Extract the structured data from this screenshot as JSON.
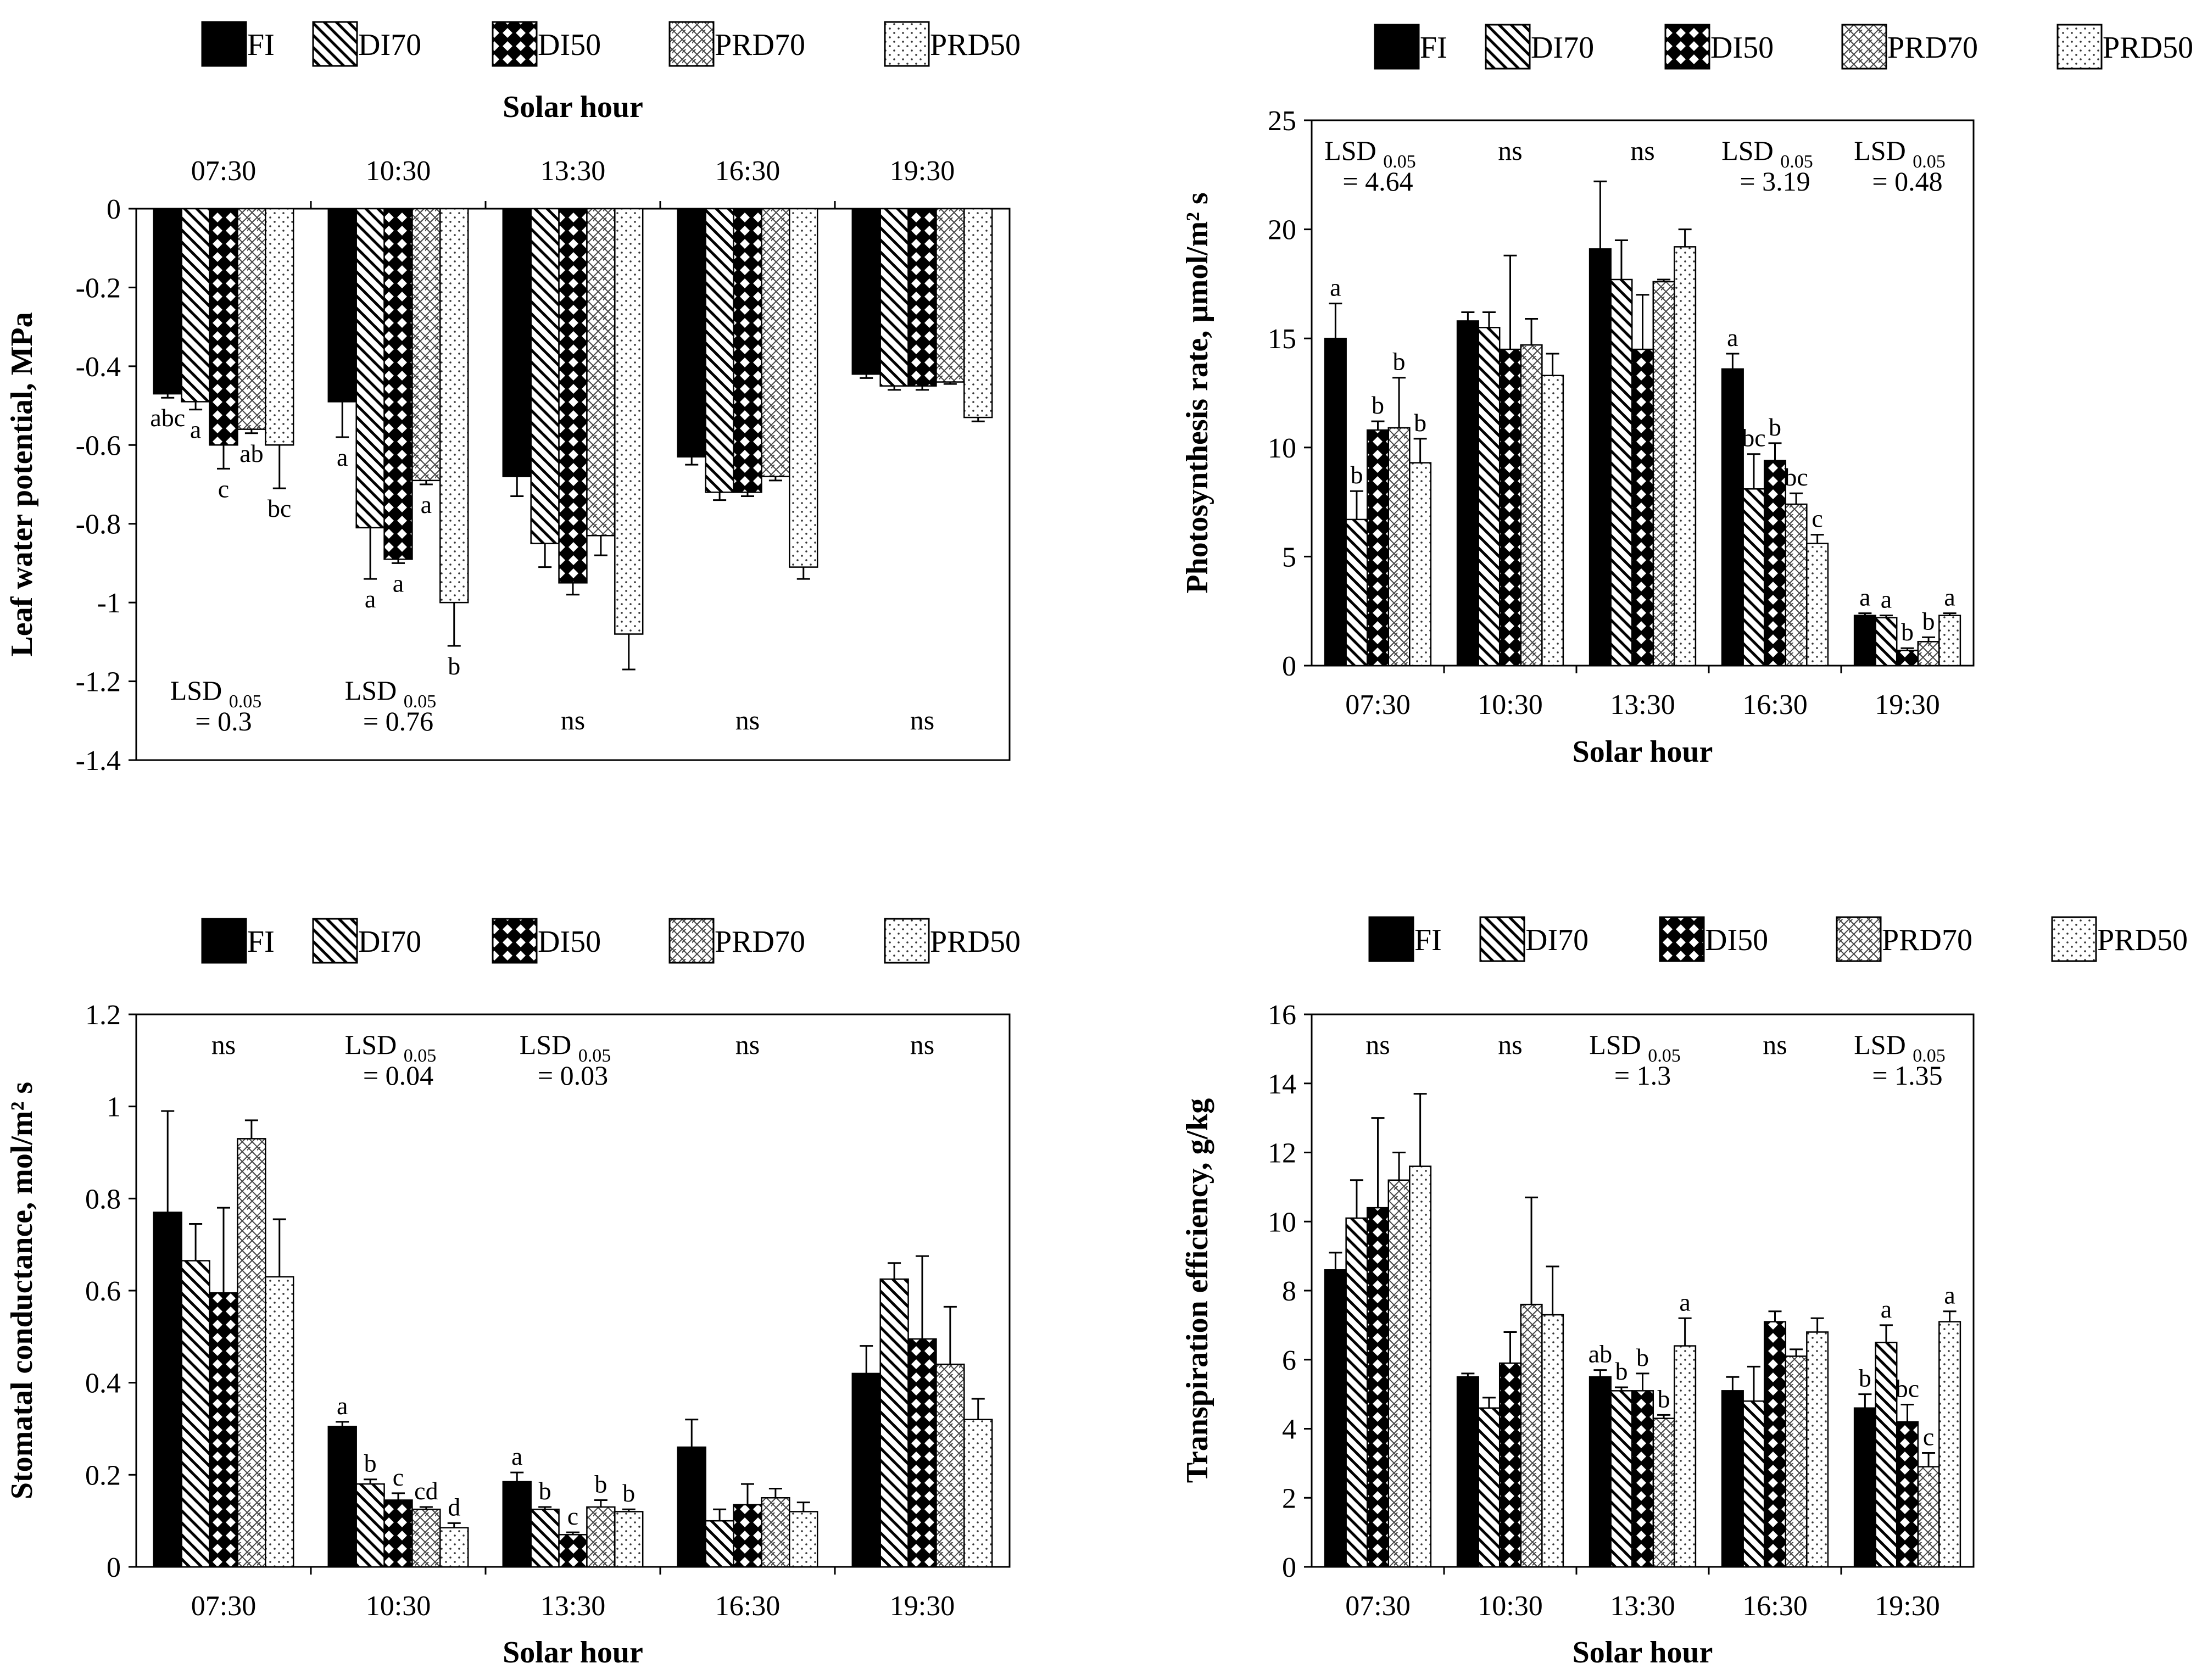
{
  "legend_labels": [
    "FI",
    "DI70",
    "DI50",
    "PRD70",
    "PRD50"
  ],
  "chart_data": [
    {
      "type": "bar",
      "title": "",
      "xlabel": "Solar hour",
      "ylabel": "Leaf water potential, MPa",
      "ylim": [
        -1.4,
        0
      ],
      "ytick_labels": [
        "0",
        "-0.2",
        "-0.4",
        "-0.6",
        "-0.8",
        "-1",
        "-1.2",
        "-1.4"
      ],
      "categories": [
        "07:30",
        "10:30",
        "13:30",
        "16:30",
        "19:30"
      ],
      "series": [
        {
          "name": "FI",
          "values": [
            -0.47,
            -0.49,
            -0.68,
            -0.63,
            -0.42
          ],
          "errors": [
            0.01,
            0.09,
            0.05,
            0.02,
            0.01
          ],
          "letters": [
            "abc",
            "a",
            "",
            "",
            ""
          ]
        },
        {
          "name": "DI70",
          "values": [
            -0.49,
            -0.81,
            -0.85,
            -0.72,
            -0.45
          ],
          "errors": [
            0.02,
            0.13,
            0.06,
            0.02,
            0.01
          ],
          "letters": [
            "a",
            "a",
            "",
            "",
            ""
          ]
        },
        {
          "name": "DI50",
          "values": [
            -0.6,
            -0.89,
            -0.95,
            -0.72,
            -0.45
          ],
          "errors": [
            0.06,
            0.01,
            0.03,
            0.01,
            0.01
          ],
          "letters": [
            "c",
            "a",
            "",
            "",
            ""
          ]
        },
        {
          "name": "PRD70",
          "values": [
            -0.56,
            -0.69,
            -0.83,
            -0.68,
            -0.44
          ],
          "errors": [
            0.01,
            0.01,
            0.05,
            0.01,
            0.005
          ],
          "letters": [
            "ab",
            "a",
            "",
            "",
            ""
          ]
        },
        {
          "name": "PRD50",
          "values": [
            -0.6,
            -1.0,
            -1.08,
            -0.91,
            -0.53
          ],
          "errors": [
            0.11,
            0.11,
            0.09,
            0.03,
            0.01
          ],
          "letters": [
            "bc",
            "b",
            "",
            "",
            ""
          ]
        }
      ],
      "annotations": [
        {
          "line1": "LSD",
          "sub": "0.05",
          "line2": "= 0.3"
        },
        {
          "line1": "LSD",
          "sub": "0.05",
          "line2": "= 0.76"
        },
        {
          "line1": "ns",
          "sub": "",
          "line2": ""
        },
        {
          "line1": "ns",
          "sub": "",
          "line2": ""
        },
        {
          "line1": "ns",
          "sub": "",
          "line2": ""
        }
      ]
    },
    {
      "type": "bar",
      "title": "",
      "xlabel": "Solar hour",
      "ylabel": "Photosynthesis rate, µmol/m² s",
      "ylim": [
        0,
        25
      ],
      "ytick_labels": [
        "0",
        "5",
        "10",
        "15",
        "20",
        "25"
      ],
      "categories": [
        "07:30",
        "10:30",
        "13:30",
        "16:30",
        "19:30"
      ],
      "series": [
        {
          "name": "FI",
          "values": [
            15.0,
            15.8,
            19.1,
            13.6,
            2.3
          ],
          "errors": [
            1.6,
            0.4,
            3.1,
            0.7,
            0.1
          ],
          "letters": [
            "a",
            "",
            "",
            "a",
            "a"
          ]
        },
        {
          "name": "DI70",
          "values": [
            6.7,
            15.5,
            17.7,
            8.1,
            2.2
          ],
          "errors": [
            1.3,
            0.7,
            1.8,
            1.6,
            0.1
          ],
          "letters": [
            "b",
            "",
            "",
            "bc",
            "a"
          ]
        },
        {
          "name": "DI50",
          "values": [
            10.8,
            14.5,
            14.5,
            9.4,
            0.7
          ],
          "errors": [
            0.4,
            4.3,
            2.5,
            0.8,
            0.1
          ],
          "letters": [
            "b",
            "",
            "",
            "b",
            "b"
          ]
        },
        {
          "name": "PRD70",
          "values": [
            10.9,
            14.7,
            17.6,
            7.4,
            1.1
          ],
          "errors": [
            2.3,
            1.2,
            0.1,
            0.5,
            0.2
          ],
          "letters": [
            "b",
            "",
            "",
            "bc",
            "b"
          ]
        },
        {
          "name": "PRD50",
          "values": [
            9.3,
            13.3,
            19.2,
            5.6,
            2.3
          ],
          "errors": [
            1.1,
            1.0,
            0.8,
            0.4,
            0.1
          ],
          "letters": [
            "b",
            "",
            "",
            "c",
            "a"
          ]
        }
      ],
      "annotations": [
        {
          "line1": "LSD",
          "sub": "0.05",
          "line2": "= 4.64"
        },
        {
          "line1": "ns",
          "sub": "",
          "line2": ""
        },
        {
          "line1": "ns",
          "sub": "",
          "line2": ""
        },
        {
          "line1": "LSD",
          "sub": "0.05",
          "line2": "= 3.19"
        },
        {
          "line1": "LSD",
          "sub": "0.05",
          "line2": "= 0.48"
        }
      ]
    },
    {
      "type": "bar",
      "title": "",
      "xlabel": "Solar hour",
      "ylabel": "Stomatal conductance, mol/m² s",
      "ylim": [
        0,
        1.2
      ],
      "ytick_labels": [
        "0",
        "0.2",
        "0.4",
        "0.6",
        "0.8",
        "1",
        "1.2"
      ],
      "categories": [
        "07:30",
        "10:30",
        "13:30",
        "16:30",
        "19:30"
      ],
      "series": [
        {
          "name": "FI",
          "values": [
            0.77,
            0.305,
            0.185,
            0.26,
            0.42
          ],
          "errors": [
            0.22,
            0.01,
            0.02,
            0.06,
            0.06
          ],
          "letters": [
            "",
            "a",
            "a",
            "",
            ""
          ]
        },
        {
          "name": "DI70",
          "values": [
            0.665,
            0.18,
            0.125,
            0.1,
            0.625
          ],
          "errors": [
            0.08,
            0.01,
            0.005,
            0.025,
            0.035
          ],
          "letters": [
            "",
            "b",
            "b",
            "",
            ""
          ]
        },
        {
          "name": "DI50",
          "values": [
            0.595,
            0.145,
            0.07,
            0.135,
            0.495
          ],
          "errors": [
            0.185,
            0.015,
            0.005,
            0.045,
            0.18
          ],
          "letters": [
            "",
            "c",
            "c",
            "",
            ""
          ]
        },
        {
          "name": "PRD70",
          "values": [
            0.93,
            0.125,
            0.13,
            0.15,
            0.44
          ],
          "errors": [
            0.04,
            0.005,
            0.015,
            0.02,
            0.125
          ],
          "letters": [
            "",
            "cd",
            "b",
            "",
            ""
          ]
        },
        {
          "name": "PRD50",
          "values": [
            0.63,
            0.085,
            0.12,
            0.12,
            0.32
          ],
          "errors": [
            0.125,
            0.01,
            0.005,
            0.02,
            0.045
          ],
          "letters": [
            "",
            "d",
            "b",
            "",
            ""
          ]
        }
      ],
      "annotations": [
        {
          "line1": "ns",
          "sub": "",
          "line2": ""
        },
        {
          "line1": "LSD",
          "sub": "0.05",
          "line2": "= 0.04"
        },
        {
          "line1": "LSD",
          "sub": "0.05",
          "line2": "= 0.03"
        },
        {
          "line1": "ns",
          "sub": "",
          "line2": ""
        },
        {
          "line1": "ns",
          "sub": "",
          "line2": ""
        }
      ]
    },
    {
      "type": "bar",
      "title": "",
      "xlabel": "Solar hour",
      "ylabel": "Transpiration efficiency, g/kg",
      "ylim": [
        0,
        16
      ],
      "ytick_labels": [
        "0",
        "2",
        "4",
        "6",
        "8",
        "10",
        "12",
        "14",
        "16"
      ],
      "categories": [
        "07:30",
        "10:30",
        "13:30",
        "16:30",
        "19:30"
      ],
      "series": [
        {
          "name": "FI",
          "values": [
            8.6,
            5.5,
            5.5,
            5.1,
            4.6
          ],
          "errors": [
            0.5,
            0.1,
            0.2,
            0.4,
            0.4
          ],
          "letters": [
            "",
            "",
            "ab",
            "",
            "b"
          ]
        },
        {
          "name": "DI70",
          "values": [
            10.1,
            4.6,
            5.1,
            4.8,
            6.5
          ],
          "errors": [
            1.1,
            0.3,
            0.1,
            1.0,
            0.5
          ],
          "letters": [
            "",
            "",
            "b",
            "",
            "a"
          ]
        },
        {
          "name": "DI50",
          "values": [
            10.4,
            5.9,
            5.1,
            7.1,
            4.2
          ],
          "errors": [
            2.6,
            0.9,
            0.5,
            0.3,
            0.5
          ],
          "letters": [
            "",
            "",
            "b",
            "",
            "bc"
          ]
        },
        {
          "name": "PRD70",
          "values": [
            11.2,
            7.6,
            4.3,
            6.1,
            2.9
          ],
          "errors": [
            0.8,
            3.1,
            0.1,
            0.2,
            0.4
          ],
          "letters": [
            "",
            "",
            "b",
            "",
            "c"
          ]
        },
        {
          "name": "PRD50",
          "values": [
            11.6,
            7.3,
            6.4,
            6.8,
            7.1
          ],
          "errors": [
            2.1,
            1.4,
            0.8,
            0.4,
            0.3
          ],
          "letters": [
            "",
            "",
            "a",
            "",
            "a"
          ]
        }
      ],
      "annotations": [
        {
          "line1": "ns",
          "sub": "",
          "line2": ""
        },
        {
          "line1": "ns",
          "sub": "",
          "line2": ""
        },
        {
          "line1": "LSD",
          "sub": "0.05",
          "line2": "= 1.3"
        },
        {
          "line1": "ns",
          "sub": "",
          "line2": ""
        },
        {
          "line1": "LSD",
          "sub": "0.05",
          "line2": "= 1.35"
        }
      ]
    }
  ]
}
